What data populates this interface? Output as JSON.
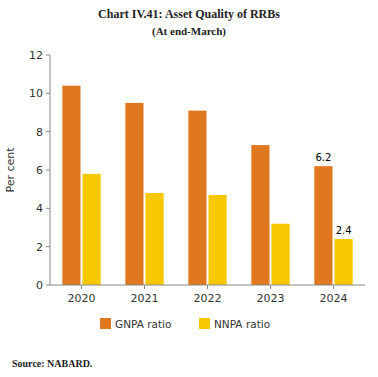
{
  "chart_data": {
    "type": "bar",
    "title": "Chart IV.41: Asset Quality of RRBs",
    "subtitle": "(At end-March)",
    "categories": [
      "2020",
      "2021",
      "2022",
      "2023",
      "2024"
    ],
    "series": [
      {
        "name": "GNPA ratio",
        "color": "#E07820",
        "values": [
          10.4,
          9.5,
          9.1,
          7.3,
          6.2
        ]
      },
      {
        "name": "NNPA ratio",
        "color": "#F5C800",
        "values": [
          5.8,
          4.8,
          4.7,
          3.2,
          2.4
        ]
      }
    ],
    "ylabel": "Per cent",
    "ylim": [
      0,
      12
    ],
    "yticks": [
      0,
      2,
      4,
      6,
      8,
      10,
      12
    ],
    "grid": false,
    "legend": "bottom",
    "annotations": [
      {
        "text": "6.2",
        "series": "GNPA ratio",
        "category": "2024"
      },
      {
        "text": "2.4",
        "series": "NNPA ratio",
        "category": "2024"
      }
    ],
    "source": "Source: NABARD."
  }
}
